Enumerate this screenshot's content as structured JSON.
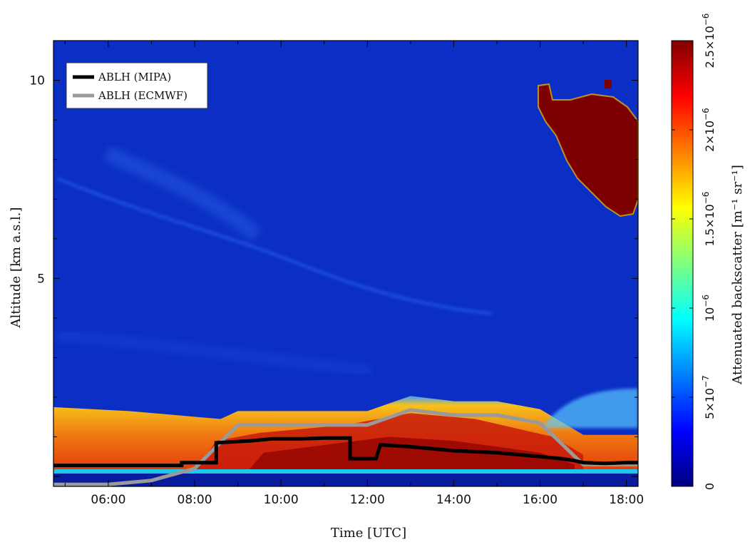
{
  "chart_data": {
    "type": "heatmap",
    "title": "",
    "xlabel": "Time [UTC]",
    "ylabel": "Altitude [km a.s.l.]",
    "xlim_hours": [
      4.73,
      18.27
    ],
    "ylim_km": [
      -0.25,
      11.0
    ],
    "x_ticks": [
      {
        "value": 6,
        "label": "06:00"
      },
      {
        "value": 8,
        "label": "08:00"
      },
      {
        "value": 10,
        "label": "10:00"
      },
      {
        "value": 12,
        "label": "12:00"
      },
      {
        "value": 14,
        "label": "14:00"
      },
      {
        "value": 16,
        "label": "16:00"
      },
      {
        "value": 18,
        "label": "18:00"
      }
    ],
    "y_ticks": [
      {
        "value": 5,
        "label": "5"
      },
      {
        "value": 10,
        "label": "10"
      }
    ],
    "legend": {
      "placement": "top-left",
      "entries": [
        {
          "label": "ABLH (MIPA)",
          "color": "#000000"
        },
        {
          "label": "ABLH (ECMWF)",
          "color": "#9a9a9a"
        }
      ]
    },
    "series": [
      {
        "name": "ABLH (MIPA)",
        "color": "#000000",
        "x": [
          4.73,
          7.7,
          7.7,
          8.5,
          8.5,
          9.3,
          9.8,
          10.5,
          11.0,
          11.4,
          11.6,
          11.6,
          12.1,
          12.2,
          12.3,
          12.3,
          13.0,
          14.0,
          15.0,
          16.0,
          16.5,
          16.8,
          17.0,
          17.5,
          18.0,
          18.27
        ],
        "y": [
          0.28,
          0.28,
          0.35,
          0.35,
          0.85,
          0.9,
          0.95,
          0.95,
          0.97,
          0.97,
          0.97,
          0.45,
          0.45,
          0.45,
          0.8,
          0.8,
          0.75,
          0.65,
          0.6,
          0.5,
          0.45,
          0.4,
          0.35,
          0.33,
          0.35,
          0.35
        ]
      },
      {
        "name": "ABLH (ECMWF)",
        "color": "#9a9a9a",
        "x": [
          4.73,
          6.0,
          7.0,
          8.0,
          9.0,
          10.0,
          11.0,
          12.0,
          13.0,
          14.0,
          15.0,
          16.0,
          17.0,
          18.0,
          18.27
        ],
        "y": [
          -0.2,
          -0.2,
          -0.1,
          0.2,
          1.3,
          1.3,
          1.3,
          1.3,
          1.68,
          1.55,
          1.55,
          1.35,
          0.3,
          0.3,
          0.3
        ]
      }
    ],
    "heatmap_features": {
      "background_color": "#0b2fc4",
      "boundary_layer_colors": [
        "#f6b31c",
        "#f07a12",
        "#d81d0a",
        "#8b0000"
      ],
      "cirrus_cloud_color": "#7d0000",
      "surface_band_color": "#1ec8e8"
    },
    "colorbar": {
      "label": "Attenuated backscatter [m⁻¹ sr⁻¹]",
      "min": 0,
      "max": 2.5e-06,
      "ticks": [
        {
          "value": 0,
          "label": "0"
        },
        {
          "value": 5e-07,
          "mantissa": "5×10",
          "exp": "−7"
        },
        {
          "value": 1e-06,
          "mantissa": "10",
          "exp": "−6"
        },
        {
          "value": 1.5e-06,
          "mantissa": "1.5×10",
          "exp": "−6"
        },
        {
          "value": 2e-06,
          "mantissa": "2×10",
          "exp": "−6"
        },
        {
          "value": 2.5e-06,
          "mantissa": "2.5×10",
          "exp": "−6"
        }
      ],
      "colormap": [
        "#00007f",
        "#0000ff",
        "#007fff",
        "#00ffff",
        "#7fff7f",
        "#ffff00",
        "#ff7f00",
        "#ff0000",
        "#7f0000"
      ]
    }
  }
}
